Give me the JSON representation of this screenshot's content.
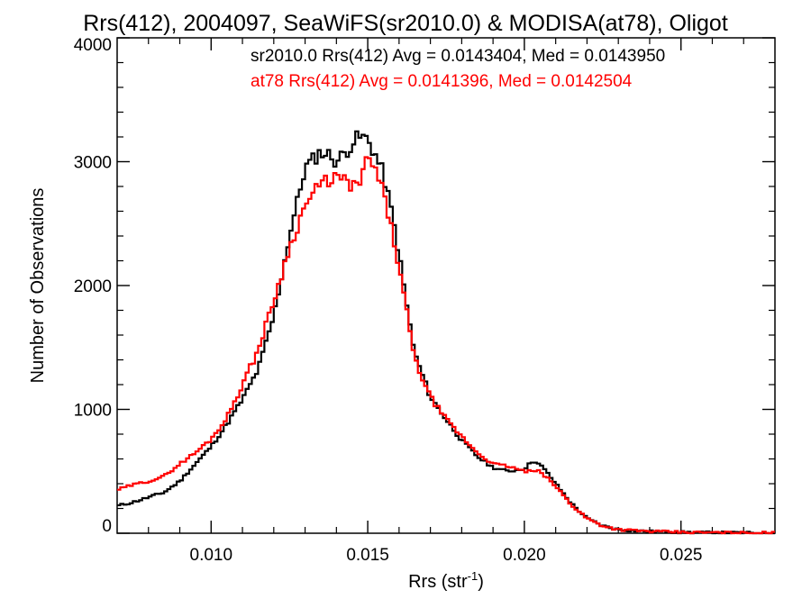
{
  "chart_data": {
    "type": "line",
    "title": "Rrs(412), 2004097, SeaWiFS(sr2010.0) & MODISA(at78), Oligot",
    "xlabel": "Rrs (str",
    "xlabel_sup": "-1",
    "xlabel_tail": ")",
    "ylabel": "Number of Observations",
    "xlim": [
      0.007,
      0.028
    ],
    "ylim": [
      0,
      4000
    ],
    "grid": false,
    "x_ticks": [
      0.01,
      0.015,
      0.02,
      0.025
    ],
    "x_tick_labels": [
      "0.010",
      "0.015",
      "0.020",
      "0.025"
    ],
    "y_ticks": [
      0,
      1000,
      2000,
      3000,
      4000
    ],
    "y_tick_labels": [
      "0",
      "1000",
      "2000",
      "3000",
      "4000"
    ],
    "annotations": [
      "sr2010.0 Rrs(412) Avg = 0.0143404, Med = 0.0143950",
      "at78 Rrs(412) Avg = 0.0141396, Med = 0.0142504"
    ],
    "series": [
      {
        "color": "#000000",
        "x": [
          0.007,
          0.0075,
          0.008,
          0.0085,
          0.009,
          0.0095,
          0.01,
          0.0105,
          0.011,
          0.0115,
          0.012,
          0.0125,
          0.013,
          0.0135,
          0.0138,
          0.014,
          0.0143,
          0.0146,
          0.0148,
          0.015,
          0.0152,
          0.0155,
          0.0158,
          0.016,
          0.0163,
          0.0165,
          0.017,
          0.0175,
          0.018,
          0.0185,
          0.019,
          0.0195,
          0.02,
          0.0203,
          0.0206,
          0.021,
          0.0215,
          0.022,
          0.0225,
          0.023,
          0.0235,
          0.024,
          0.025,
          0.026,
          0.027,
          0.028
        ],
        "y": [
          220,
          250,
          290,
          330,
          420,
          560,
          700,
          880,
          1080,
          1320,
          1750,
          2400,
          2950,
          3080,
          3050,
          3000,
          3080,
          3180,
          3200,
          3180,
          3080,
          2900,
          2550,
          2250,
          1750,
          1450,
          1100,
          920,
          750,
          620,
          530,
          500,
          520,
          590,
          530,
          400,
          240,
          120,
          60,
          30,
          20,
          15,
          8,
          5,
          3,
          2
        ]
      },
      {
        "color": "#ff0000",
        "x": [
          0.007,
          0.0075,
          0.008,
          0.0085,
          0.009,
          0.0095,
          0.01,
          0.0105,
          0.011,
          0.0115,
          0.012,
          0.0125,
          0.013,
          0.0135,
          0.014,
          0.0143,
          0.0146,
          0.0148,
          0.015,
          0.0153,
          0.0156,
          0.016,
          0.0163,
          0.0165,
          0.017,
          0.0175,
          0.018,
          0.0185,
          0.019,
          0.0195,
          0.02,
          0.0205,
          0.021,
          0.0215,
          0.022,
          0.0225,
          0.023,
          0.024,
          0.025,
          0.026,
          0.027,
          0.028
        ],
        "y": [
          350,
          390,
          420,
          460,
          560,
          650,
          760,
          930,
          1200,
          1480,
          1880,
          2300,
          2650,
          2820,
          2880,
          2830,
          2800,
          2850,
          3040,
          2900,
          2650,
          2150,
          1700,
          1400,
          1100,
          920,
          780,
          650,
          560,
          540,
          500,
          500,
          380,
          230,
          120,
          60,
          30,
          15,
          8,
          5,
          3,
          2
        ]
      }
    ]
  }
}
